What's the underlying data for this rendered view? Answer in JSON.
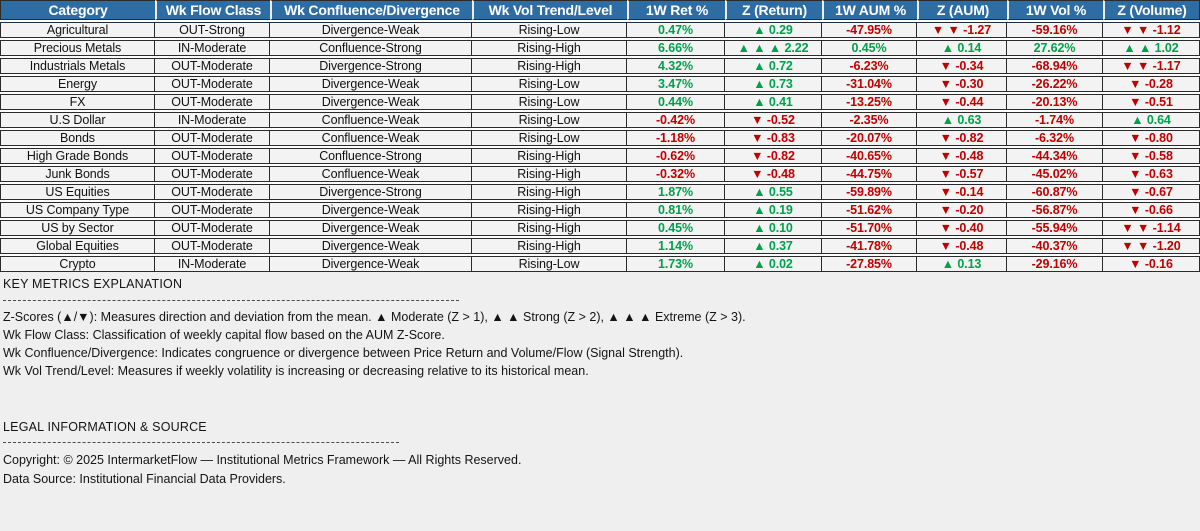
{
  "colors": {
    "header_bg": "#2E6DA4",
    "header_text": "#FFFFFF",
    "positive": "#00A14B",
    "negative": "#C00000",
    "row_bg": "#F3F3F3",
    "page_bg": "#EFEFEF",
    "border": "#2B2B2B"
  },
  "table": {
    "headers": [
      "Category",
      "Wk Flow Class",
      "Wk Confluence/Divergence",
      "Wk Vol Trend/Level",
      "1W Ret %",
      "Z (Return)",
      "1W AUM %",
      "Z (AUM)",
      "1W Vol %",
      "Z (Volume)"
    ],
    "rows": [
      {
        "category": "Agricultural",
        "flow_class": "OUT-Strong",
        "confluence": "Divergence-Weak",
        "vol_trend": "Rising-Low",
        "ret_1w": {
          "text": "0.47%",
          "tone": "pos"
        },
        "z_return": {
          "text": "▲ 0.29",
          "tone": "pos"
        },
        "aum_1w": {
          "text": "-47.95%",
          "tone": "neg"
        },
        "z_aum": {
          "text": "▼ ▼ -1.27",
          "tone": "neg"
        },
        "vol_1w": {
          "text": "-59.16%",
          "tone": "neg"
        },
        "z_volume": {
          "text": "▼ ▼ -1.12",
          "tone": "neg"
        }
      },
      {
        "category": "Precious Metals",
        "flow_class": "IN-Moderate",
        "confluence": "Confluence-Strong",
        "vol_trend": "Rising-High",
        "ret_1w": {
          "text": "6.66%",
          "tone": "pos"
        },
        "z_return": {
          "text": "▲ ▲ ▲ 2.22",
          "tone": "pos"
        },
        "aum_1w": {
          "text": "0.45%",
          "tone": "pos"
        },
        "z_aum": {
          "text": "▲ 0.14",
          "tone": "pos"
        },
        "vol_1w": {
          "text": "27.62%",
          "tone": "pos"
        },
        "z_volume": {
          "text": "▲ ▲ 1.02",
          "tone": "pos"
        }
      },
      {
        "category": "Industrials Metals",
        "flow_class": "OUT-Moderate",
        "confluence": "Divergence-Strong",
        "vol_trend": "Rising-High",
        "ret_1w": {
          "text": "4.32%",
          "tone": "pos"
        },
        "z_return": {
          "text": "▲ 0.72",
          "tone": "pos"
        },
        "aum_1w": {
          "text": "-6.23%",
          "tone": "neg"
        },
        "z_aum": {
          "text": "▼ -0.34",
          "tone": "neg"
        },
        "vol_1w": {
          "text": "-68.94%",
          "tone": "neg"
        },
        "z_volume": {
          "text": "▼ ▼ -1.17",
          "tone": "neg"
        }
      },
      {
        "category": "Energy",
        "flow_class": "OUT-Moderate",
        "confluence": "Divergence-Weak",
        "vol_trend": "Rising-Low",
        "ret_1w": {
          "text": "3.47%",
          "tone": "pos"
        },
        "z_return": {
          "text": "▲ 0.73",
          "tone": "pos"
        },
        "aum_1w": {
          "text": "-31.04%",
          "tone": "neg"
        },
        "z_aum": {
          "text": "▼ -0.30",
          "tone": "neg"
        },
        "vol_1w": {
          "text": "-26.22%",
          "tone": "neg"
        },
        "z_volume": {
          "text": "▼ -0.28",
          "tone": "neg"
        }
      },
      {
        "category": "FX",
        "flow_class": "OUT-Moderate",
        "confluence": "Divergence-Weak",
        "vol_trend": "Rising-Low",
        "ret_1w": {
          "text": "0.44%",
          "tone": "pos"
        },
        "z_return": {
          "text": "▲ 0.41",
          "tone": "pos"
        },
        "aum_1w": {
          "text": "-13.25%",
          "tone": "neg"
        },
        "z_aum": {
          "text": "▼ -0.44",
          "tone": "neg"
        },
        "vol_1w": {
          "text": "-20.13%",
          "tone": "neg"
        },
        "z_volume": {
          "text": "▼ -0.51",
          "tone": "neg"
        }
      },
      {
        "category": "U.S Dollar",
        "flow_class": "IN-Moderate",
        "confluence": "Confluence-Weak",
        "vol_trend": "Rising-Low",
        "ret_1w": {
          "text": "-0.42%",
          "tone": "neg"
        },
        "z_return": {
          "text": "▼ -0.52",
          "tone": "neg"
        },
        "aum_1w": {
          "text": "-2.35%",
          "tone": "neg"
        },
        "z_aum": {
          "text": "▲ 0.63",
          "tone": "pos"
        },
        "vol_1w": {
          "text": "-1.74%",
          "tone": "neg"
        },
        "z_volume": {
          "text": "▲ 0.64",
          "tone": "pos"
        }
      },
      {
        "category": "Bonds",
        "flow_class": "OUT-Moderate",
        "confluence": "Confluence-Weak",
        "vol_trend": "Rising-Low",
        "ret_1w": {
          "text": "-1.18%",
          "tone": "neg"
        },
        "z_return": {
          "text": "▼ -0.83",
          "tone": "neg"
        },
        "aum_1w": {
          "text": "-20.07%",
          "tone": "neg"
        },
        "z_aum": {
          "text": "▼ -0.82",
          "tone": "neg"
        },
        "vol_1w": {
          "text": "-6.32%",
          "tone": "neg"
        },
        "z_volume": {
          "text": "▼ -0.80",
          "tone": "neg"
        }
      },
      {
        "category": "High Grade Bonds",
        "flow_class": "OUT-Moderate",
        "confluence": "Confluence-Strong",
        "vol_trend": "Rising-High",
        "ret_1w": {
          "text": "-0.62%",
          "tone": "neg"
        },
        "z_return": {
          "text": "▼ -0.82",
          "tone": "neg"
        },
        "aum_1w": {
          "text": "-40.65%",
          "tone": "neg"
        },
        "z_aum": {
          "text": "▼ -0.48",
          "tone": "neg"
        },
        "vol_1w": {
          "text": "-44.34%",
          "tone": "neg"
        },
        "z_volume": {
          "text": "▼ -0.58",
          "tone": "neg"
        }
      },
      {
        "category": "Junk Bonds",
        "flow_class": "OUT-Moderate",
        "confluence": "Confluence-Weak",
        "vol_trend": "Rising-High",
        "ret_1w": {
          "text": "-0.32%",
          "tone": "neg"
        },
        "z_return": {
          "text": "▼ -0.48",
          "tone": "neg"
        },
        "aum_1w": {
          "text": "-44.75%",
          "tone": "neg"
        },
        "z_aum": {
          "text": "▼ -0.57",
          "tone": "neg"
        },
        "vol_1w": {
          "text": "-45.02%",
          "tone": "neg"
        },
        "z_volume": {
          "text": "▼ -0.63",
          "tone": "neg"
        }
      },
      {
        "category": "US Equities",
        "flow_class": "OUT-Moderate",
        "confluence": "Divergence-Strong",
        "vol_trend": "Rising-High",
        "ret_1w": {
          "text": "1.87%",
          "tone": "pos"
        },
        "z_return": {
          "text": "▲ 0.55",
          "tone": "pos"
        },
        "aum_1w": {
          "text": "-59.89%",
          "tone": "neg"
        },
        "z_aum": {
          "text": "▼ -0.14",
          "tone": "neg"
        },
        "vol_1w": {
          "text": "-60.87%",
          "tone": "neg"
        },
        "z_volume": {
          "text": "▼ -0.67",
          "tone": "neg"
        }
      },
      {
        "category": "US Company Type",
        "flow_class": "OUT-Moderate",
        "confluence": "Divergence-Weak",
        "vol_trend": "Rising-High",
        "ret_1w": {
          "text": "0.81%",
          "tone": "pos"
        },
        "z_return": {
          "text": "▲ 0.19",
          "tone": "pos"
        },
        "aum_1w": {
          "text": "-51.62%",
          "tone": "neg"
        },
        "z_aum": {
          "text": "▼ -0.20",
          "tone": "neg"
        },
        "vol_1w": {
          "text": "-56.87%",
          "tone": "neg"
        },
        "z_volume": {
          "text": "▼ -0.66",
          "tone": "neg"
        }
      },
      {
        "category": "US by Sector",
        "flow_class": "OUT-Moderate",
        "confluence": "Divergence-Weak",
        "vol_trend": "Rising-High",
        "ret_1w": {
          "text": "0.45%",
          "tone": "pos"
        },
        "z_return": {
          "text": "▲ 0.10",
          "tone": "pos"
        },
        "aum_1w": {
          "text": "-51.70%",
          "tone": "neg"
        },
        "z_aum": {
          "text": "▼ -0.40",
          "tone": "neg"
        },
        "vol_1w": {
          "text": "-55.94%",
          "tone": "neg"
        },
        "z_volume": {
          "text": "▼ ▼ -1.14",
          "tone": "neg"
        }
      },
      {
        "category": "Global Equities",
        "flow_class": "OUT-Moderate",
        "confluence": "Divergence-Weak",
        "vol_trend": "Rising-High",
        "ret_1w": {
          "text": "1.14%",
          "tone": "pos"
        },
        "z_return": {
          "text": "▲ 0.37",
          "tone": "pos"
        },
        "aum_1w": {
          "text": "-41.78%",
          "tone": "neg"
        },
        "z_aum": {
          "text": "▼ -0.48",
          "tone": "neg"
        },
        "vol_1w": {
          "text": "-40.37%",
          "tone": "neg"
        },
        "z_volume": {
          "text": "▼ ▼ -1.20",
          "tone": "neg"
        }
      },
      {
        "category": "Crypto",
        "flow_class": "IN-Moderate",
        "confluence": "Divergence-Weak",
        "vol_trend": "Rising-Low",
        "ret_1w": {
          "text": "1.73%",
          "tone": "pos"
        },
        "z_return": {
          "text": "▲ 0.02",
          "tone": "pos"
        },
        "aum_1w": {
          "text": "-27.85%",
          "tone": "neg"
        },
        "z_aum": {
          "text": "▲ 0.13",
          "tone": "pos"
        },
        "vol_1w": {
          "text": "-29.16%",
          "tone": "neg"
        },
        "z_volume": {
          "text": "▼ -0.16",
          "tone": "neg"
        }
      }
    ]
  },
  "key_metrics": {
    "heading": "KEY METRICS EXPLANATION",
    "lines": [
      "Z-Scores (▲/▼): Measures direction and deviation from the mean. ▲ Moderate (Z > 1), ▲ ▲ Strong (Z > 2), ▲ ▲ ▲ Extreme (Z > 3).",
      "Wk Flow Class: Classification of weekly capital flow based on the AUM Z-Score.",
      "Wk Confluence/Divergence: Indicates congruence or divergence between Price Return and Volume/Flow (Signal Strength).",
      "Wk Vol Trend/Level: Measures if weekly volatility is increasing or decreasing relative to its historical mean."
    ]
  },
  "legal": {
    "heading": "LEGAL INFORMATION & SOURCE",
    "lines": [
      "Copyright: © 2025 IntermarketFlow — Institutional Metrics Framework — All Rights Reserved.",
      "Data Source: Institutional Financial Data Providers."
    ]
  }
}
